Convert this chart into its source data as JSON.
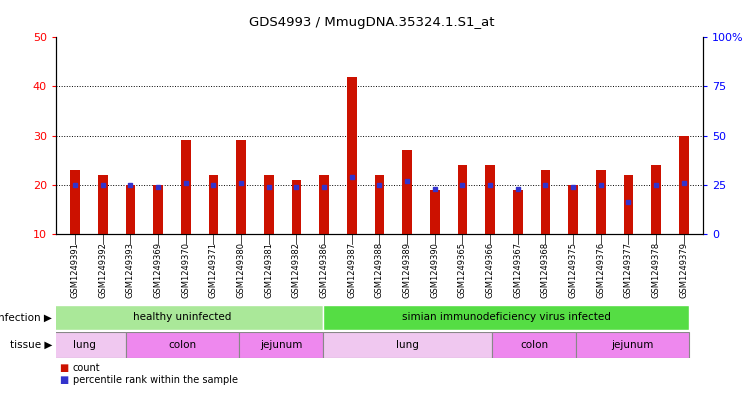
{
  "title": "GDS4993 / MmugDNA.35324.1.S1_at",
  "samples": [
    "GSM1249391",
    "GSM1249392",
    "GSM1249393",
    "GSM1249369",
    "GSM1249370",
    "GSM1249371",
    "GSM1249380",
    "GSM1249381",
    "GSM1249382",
    "GSM1249386",
    "GSM1249387",
    "GSM1249388",
    "GSM1249389",
    "GSM1249390",
    "GSM1249365",
    "GSM1249366",
    "GSM1249367",
    "GSM1249368",
    "GSM1249375",
    "GSM1249376",
    "GSM1249377",
    "GSM1249378",
    "GSM1249379"
  ],
  "counts": [
    23,
    22,
    20,
    20,
    29,
    22,
    29,
    22,
    21,
    22,
    42,
    22,
    27,
    19,
    24,
    24,
    19,
    23,
    20,
    23,
    22,
    24,
    30
  ],
  "percentiles": [
    25,
    25,
    25,
    24,
    26,
    25,
    26,
    24,
    24,
    24,
    29,
    25,
    27,
    23,
    25,
    25,
    23,
    25,
    24,
    25,
    16,
    25,
    26
  ],
  "bar_color": "#cc1100",
  "dot_color": "#3333cc",
  "left_ylim": [
    10,
    50
  ],
  "left_yticks": [
    10,
    20,
    30,
    40,
    50
  ],
  "right_ylim": [
    0,
    100
  ],
  "right_yticks": [
    0,
    25,
    50,
    75,
    100
  ],
  "right_yticklabels": [
    "0",
    "25",
    "50",
    "75",
    "100%"
  ],
  "grid_values": [
    20,
    30,
    40
  ],
  "infection_groups": [
    {
      "label": "healthy uninfected",
      "start": 0,
      "end": 9,
      "color": "#aae899"
    },
    {
      "label": "simian immunodeficiency virus infected",
      "start": 10,
      "end": 22,
      "color": "#55dd44"
    }
  ],
  "tissue_groups": [
    {
      "label": "lung",
      "start": 0,
      "end": 2,
      "color": "#f0c8f0"
    },
    {
      "label": "colon",
      "start": 3,
      "end": 6,
      "color": "#ee88ee"
    },
    {
      "label": "jejunum",
      "start": 7,
      "end": 9,
      "color": "#ee88ee"
    },
    {
      "label": "lung",
      "start": 10,
      "end": 15,
      "color": "#f0c8f0"
    },
    {
      "label": "colon",
      "start": 16,
      "end": 18,
      "color": "#ee88ee"
    },
    {
      "label": "jejunum",
      "start": 19,
      "end": 22,
      "color": "#ee88ee"
    }
  ],
  "bar_color_red": "#cc1100",
  "dot_color_blue": "#3333cc",
  "bg_color": "#ffffff",
  "xlabel_bg": "#d8d8d8",
  "bar_width": 0.35
}
